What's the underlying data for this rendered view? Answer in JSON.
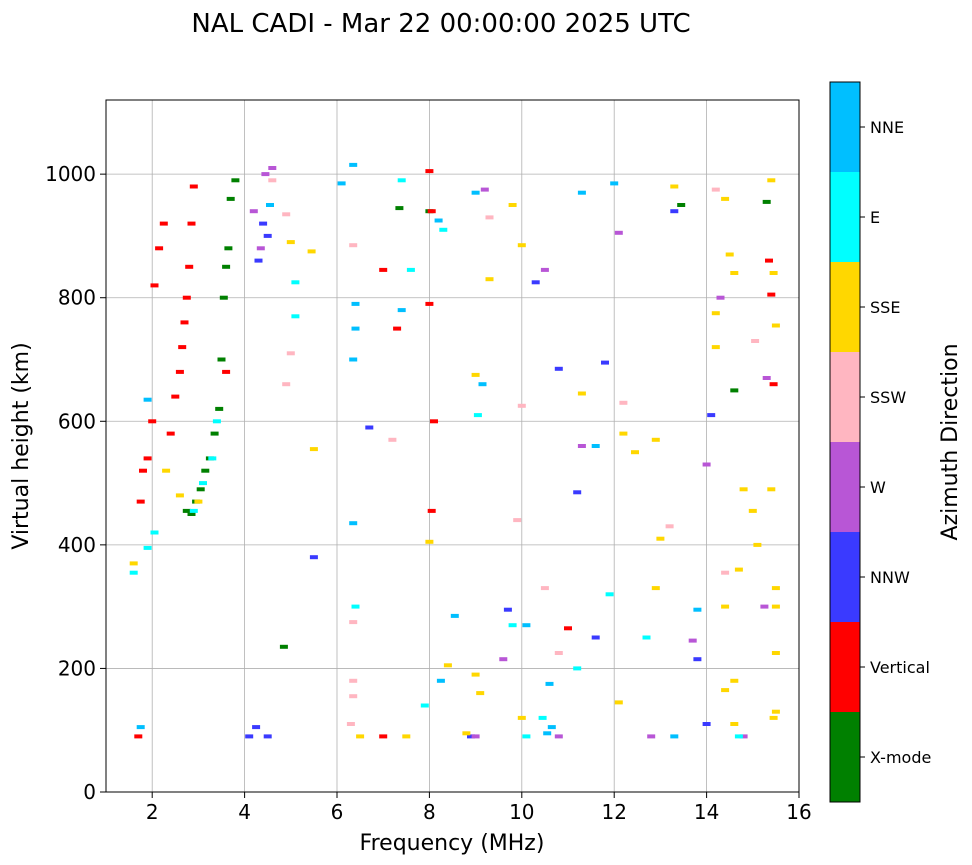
{
  "chart_data": {
    "type": "scatter",
    "title": "NAL CADI - Mar 22 00:00:00 2025 UTC",
    "xlabel": "Frequency (MHz)",
    "ylabel": "Virtual height (km)",
    "xlim": [
      1,
      16
    ],
    "ylim": [
      0,
      1120
    ],
    "xticks": [
      2,
      4,
      6,
      8,
      10,
      12,
      14,
      16
    ],
    "yticks": [
      0,
      200,
      400,
      600,
      800,
      1000
    ],
    "grid": true,
    "colorbar": {
      "label": "Azimuth Direction",
      "categories": [
        {
          "name": "X-mode",
          "color": "#008000"
        },
        {
          "name": "Vertical",
          "color": "#ff0000"
        },
        {
          "name": "NNW",
          "color": "#3a3aff"
        },
        {
          "name": "W",
          "color": "#b856d6"
        },
        {
          "name": "SSW",
          "color": "#ffb6c1"
        },
        {
          "name": "SSE",
          "color": "#ffd700"
        },
        {
          "name": "E",
          "color": "#00ffff"
        },
        {
          "name": "NNE",
          "color": "#00bfff"
        }
      ]
    },
    "series": [
      {
        "name": "X-mode",
        "points": [
          [
            2.75,
            455
          ],
          [
            2.85,
            450
          ],
          [
            2.95,
            470
          ],
          [
            3.05,
            490
          ],
          [
            3.15,
            520
          ],
          [
            3.25,
            540
          ],
          [
            3.35,
            580
          ],
          [
            3.45,
            620
          ],
          [
            3.5,
            700
          ],
          [
            3.55,
            800
          ],
          [
            3.6,
            850
          ],
          [
            3.65,
            880
          ],
          [
            3.7,
            960
          ],
          [
            3.8,
            990
          ],
          [
            4.85,
            235
          ],
          [
            13.45,
            950
          ],
          [
            14.6,
            650
          ],
          [
            15.3,
            955
          ],
          [
            8.0,
            940
          ],
          [
            7.35,
            945
          ]
        ]
      },
      {
        "name": "Vertical",
        "points": [
          [
            1.7,
            90
          ],
          [
            1.75,
            470
          ],
          [
            1.8,
            520
          ],
          [
            1.9,
            540
          ],
          [
            2.0,
            600
          ],
          [
            2.05,
            820
          ],
          [
            2.15,
            880
          ],
          [
            2.25,
            920
          ],
          [
            2.4,
            580
          ],
          [
            2.5,
            640
          ],
          [
            2.6,
            680
          ],
          [
            2.65,
            720
          ],
          [
            2.7,
            760
          ],
          [
            2.75,
            800
          ],
          [
            2.8,
            850
          ],
          [
            2.85,
            920
          ],
          [
            2.9,
            980
          ],
          [
            3.6,
            680
          ],
          [
            7.0,
            845
          ],
          [
            7.3,
            750
          ],
          [
            8.0,
            1005
          ],
          [
            8.05,
            940
          ],
          [
            8.1,
            600
          ],
          [
            8.05,
            455
          ],
          [
            8.0,
            790
          ],
          [
            11.0,
            265
          ],
          [
            15.35,
            860
          ],
          [
            15.4,
            805
          ],
          [
            15.45,
            660
          ],
          [
            7.0,
            90
          ]
        ]
      },
      {
        "name": "NNW",
        "points": [
          [
            4.4,
            920
          ],
          [
            4.5,
            900
          ],
          [
            4.3,
            860
          ],
          [
            4.25,
            105
          ],
          [
            4.1,
            90
          ],
          [
            4.5,
            90
          ],
          [
            8.9,
            90
          ],
          [
            10.3,
            825
          ],
          [
            10.8,
            685
          ],
          [
            11.2,
            485
          ],
          [
            11.8,
            695
          ],
          [
            13.3,
            940
          ],
          [
            13.8,
            215
          ],
          [
            14.0,
            110
          ],
          [
            14.1,
            610
          ],
          [
            9.7,
            295
          ],
          [
            11.6,
            250
          ],
          [
            5.5,
            380
          ],
          [
            6.7,
            590
          ]
        ]
      },
      {
        "name": "W",
        "points": [
          [
            4.2,
            940
          ],
          [
            4.35,
            880
          ],
          [
            4.45,
            1000
          ],
          [
            4.6,
            1010
          ],
          [
            9.6,
            215
          ],
          [
            9.2,
            975
          ],
          [
            10.5,
            845
          ],
          [
            11.3,
            560
          ],
          [
            12.1,
            905
          ],
          [
            13.7,
            245
          ],
          [
            14.0,
            530
          ],
          [
            14.3,
            800
          ],
          [
            15.3,
            670
          ],
          [
            15.25,
            300
          ],
          [
            10.8,
            90
          ],
          [
            12.8,
            90
          ],
          [
            14.8,
            90
          ],
          [
            9.0,
            90
          ]
        ]
      },
      {
        "name": "SSW",
        "points": [
          [
            4.6,
            990
          ],
          [
            4.9,
            935
          ],
          [
            5.0,
            710
          ],
          [
            4.9,
            660
          ],
          [
            6.35,
            885
          ],
          [
            6.35,
            275
          ],
          [
            6.35,
            155
          ],
          [
            6.35,
            180
          ],
          [
            6.3,
            110
          ],
          [
            9.3,
            930
          ],
          [
            10.0,
            625
          ],
          [
            10.5,
            330
          ],
          [
            10.8,
            225
          ],
          [
            12.2,
            630
          ],
          [
            13.2,
            430
          ],
          [
            14.2,
            975
          ],
          [
            14.4,
            355
          ],
          [
            15.05,
            730
          ],
          [
            9.9,
            440
          ],
          [
            7.2,
            570
          ]
        ]
      },
      {
        "name": "SSE",
        "points": [
          [
            1.6,
            370
          ],
          [
            2.3,
            520
          ],
          [
            2.6,
            480
          ],
          [
            3.0,
            470
          ],
          [
            5.0,
            890
          ],
          [
            5.45,
            875
          ],
          [
            5.5,
            555
          ],
          [
            9.0,
            675
          ],
          [
            9.3,
            830
          ],
          [
            9.8,
            950
          ],
          [
            10.0,
            885
          ],
          [
            11.3,
            645
          ],
          [
            12.2,
            580
          ],
          [
            12.45,
            550
          ],
          [
            12.9,
            570
          ],
          [
            13.0,
            410
          ],
          [
            13.3,
            980
          ],
          [
            14.2,
            775
          ],
          [
            14.2,
            720
          ],
          [
            14.4,
            960
          ],
          [
            14.5,
            870
          ],
          [
            14.6,
            840
          ],
          [
            14.8,
            490
          ],
          [
            15.0,
            455
          ],
          [
            15.1,
            400
          ],
          [
            15.4,
            990
          ],
          [
            15.45,
            840
          ],
          [
            15.5,
            755
          ],
          [
            15.4,
            490
          ],
          [
            15.5,
            330
          ],
          [
            15.5,
            300
          ],
          [
            15.5,
            225
          ],
          [
            15.5,
            130
          ],
          [
            15.45,
            120
          ],
          [
            14.7,
            360
          ],
          [
            14.6,
            180
          ],
          [
            14.4,
            165
          ],
          [
            12.9,
            330
          ],
          [
            12.1,
            145
          ],
          [
            8.8,
            95
          ],
          [
            8.4,
            205
          ],
          [
            9.0,
            190
          ],
          [
            8.0,
            405
          ],
          [
            9.1,
            160
          ],
          [
            10.0,
            120
          ],
          [
            14.6,
            110
          ],
          [
            14.4,
            300
          ],
          [
            6.5,
            90
          ],
          [
            7.5,
            90
          ]
        ]
      },
      {
        "name": "E",
        "points": [
          [
            1.6,
            355
          ],
          [
            1.9,
            395
          ],
          [
            2.05,
            420
          ],
          [
            2.9,
            455
          ],
          [
            3.1,
            500
          ],
          [
            3.3,
            540
          ],
          [
            3.4,
            600
          ],
          [
            5.1,
            825
          ],
          [
            5.1,
            770
          ],
          [
            7.6,
            845
          ],
          [
            7.4,
            990
          ],
          [
            8.3,
            910
          ],
          [
            9.05,
            610
          ],
          [
            10.45,
            120
          ],
          [
            10.1,
            90
          ],
          [
            11.9,
            320
          ],
          [
            11.2,
            200
          ],
          [
            12.7,
            250
          ],
          [
            14.7,
            90
          ],
          [
            7.9,
            140
          ],
          [
            9.8,
            270
          ],
          [
            6.4,
            300
          ]
        ]
      },
      {
        "name": "NNE",
        "points": [
          [
            1.75,
            105
          ],
          [
            1.9,
            635
          ],
          [
            4.55,
            950
          ],
          [
            6.35,
            1015
          ],
          [
            6.1,
            985
          ],
          [
            6.4,
            750
          ],
          [
            6.35,
            700
          ],
          [
            6.35,
            435
          ],
          [
            6.4,
            790
          ],
          [
            7.4,
            780
          ],
          [
            8.2,
            925
          ],
          [
            8.55,
            285
          ],
          [
            8.25,
            180
          ],
          [
            9.0,
            970
          ],
          [
            9.15,
            660
          ],
          [
            10.1,
            270
          ],
          [
            10.55,
            95
          ],
          [
            10.65,
            105
          ],
          [
            10.6,
            175
          ],
          [
            11.6,
            560
          ],
          [
            11.3,
            970
          ],
          [
            13.3,
            90
          ],
          [
            13.8,
            295
          ],
          [
            12.0,
            985
          ]
        ]
      }
    ]
  }
}
